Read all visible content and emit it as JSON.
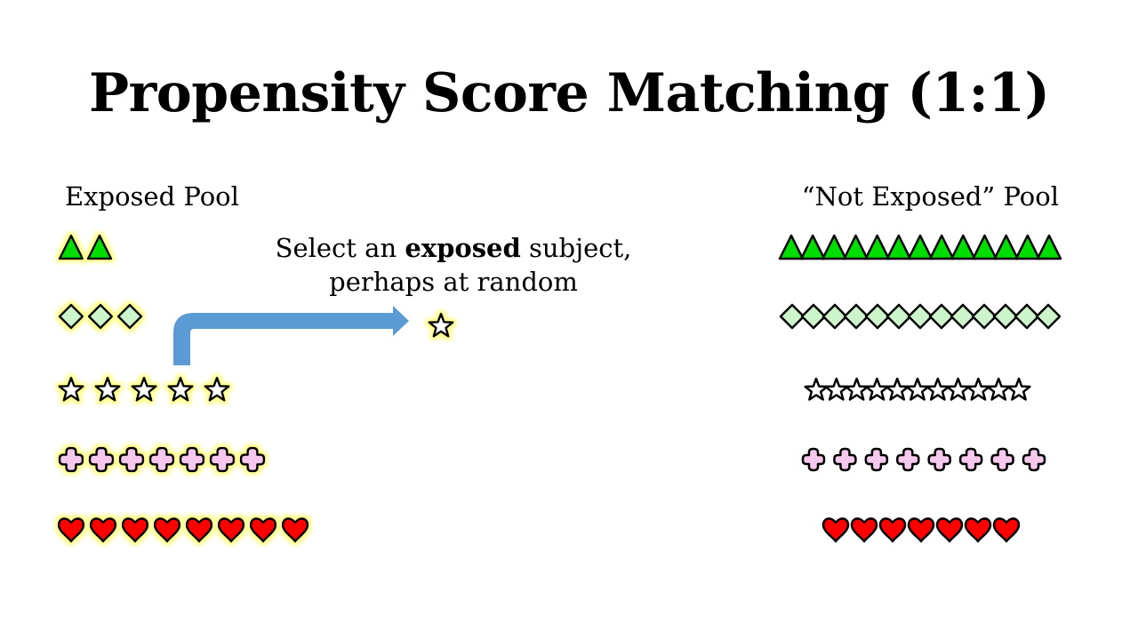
{
  "slide": {
    "title": "Propensity Score Matching (1:1)",
    "exposed_label": "Exposed Pool",
    "not_exposed_label": "“Not Exposed” Pool",
    "caption_line1_pre": "Select an ",
    "caption_line1_bold": "exposed",
    "caption_line1_post": " subject,",
    "caption_line2": "perhaps at random"
  },
  "colors": {
    "triangle": "#00dd00",
    "diamond": "#ccf5cc",
    "star": "#ffffff",
    "plus": "#f7c8ee",
    "heart": "#ff0000",
    "glow": "#ffff88",
    "arrow": "#5b9bd5"
  },
  "pools": {
    "exposed": [
      {
        "shape": "triangle",
        "count": 2
      },
      {
        "shape": "diamond",
        "count": 3
      },
      {
        "shape": "star",
        "count": 5
      },
      {
        "shape": "plus",
        "count": 7
      },
      {
        "shape": "heart",
        "count": 8
      }
    ],
    "not_exposed": [
      {
        "shape": "triangle",
        "count": 13
      },
      {
        "shape": "diamond",
        "count": 13
      },
      {
        "shape": "star",
        "count": 11
      },
      {
        "shape": "plus",
        "count": 8
      },
      {
        "shape": "heart",
        "count": 7
      }
    ]
  },
  "selected_subject": {
    "shape": "star"
  }
}
